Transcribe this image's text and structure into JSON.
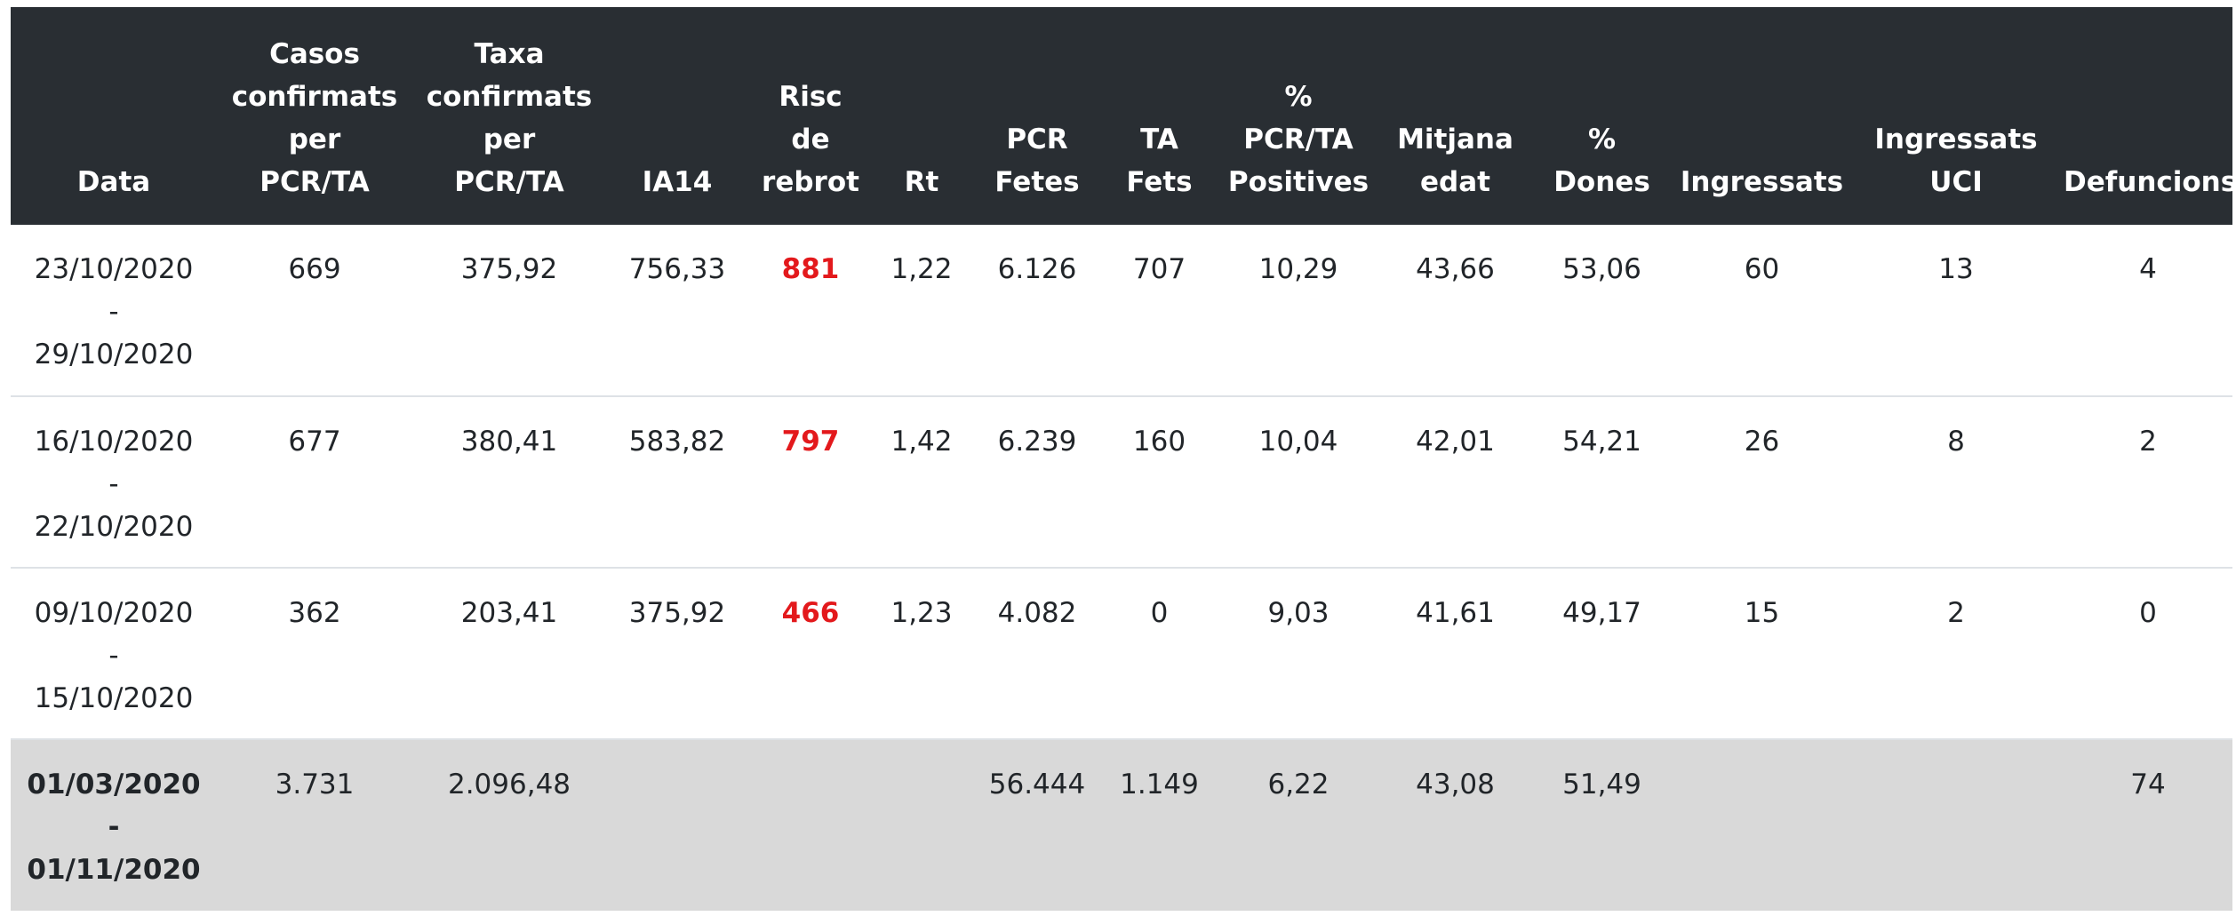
{
  "table": {
    "headers": [
      [
        "Data"
      ],
      [
        "Casos",
        "confirmats",
        "per",
        "PCR/TA"
      ],
      [
        "Taxa",
        "confirmats",
        "per",
        "PCR/TA"
      ],
      [
        "IA14"
      ],
      [
        "Risc",
        "de",
        "rebrot"
      ],
      [
        "Rt"
      ],
      [
        "PCR",
        "Fetes"
      ],
      [
        "TA",
        "Fets"
      ],
      [
        "%",
        "PCR/TA",
        "Positives"
      ],
      [
        "Mitjana",
        "edat"
      ],
      [
        "%",
        "Dones"
      ],
      [
        "Ingressats"
      ],
      [
        "Ingressats",
        "UCI"
      ],
      [
        "Defuncions"
      ]
    ],
    "rows": [
      {
        "date_start": "23/10/2020",
        "date_sep": "-",
        "date_end": "29/10/2020",
        "casos": "669",
        "taxa": "375,92",
        "ia14": "756,33",
        "risc": "881",
        "rt": "1,22",
        "pcr": "6.126",
        "ta": "707",
        "positives": "10,29",
        "edat": "43,66",
        "dones": "53,06",
        "ingressats": "60",
        "uci": "13",
        "defuncions": "4"
      },
      {
        "date_start": "16/10/2020",
        "date_sep": "-",
        "date_end": "22/10/2020",
        "casos": "677",
        "taxa": "380,41",
        "ia14": "583,82",
        "risc": "797",
        "rt": "1,42",
        "pcr": "6.239",
        "ta": "160",
        "positives": "10,04",
        "edat": "42,01",
        "dones": "54,21",
        "ingressats": "26",
        "uci": "8",
        "defuncions": "2"
      },
      {
        "date_start": "09/10/2020",
        "date_sep": "-",
        "date_end": "15/10/2020",
        "casos": "362",
        "taxa": "203,41",
        "ia14": "375,92",
        "risc": "466",
        "rt": "1,23",
        "pcr": "4.082",
        "ta": "0",
        "positives": "9,03",
        "edat": "41,61",
        "dones": "49,17",
        "ingressats": "15",
        "uci": "2",
        "defuncions": "0"
      }
    ],
    "total": {
      "date_start": "01/03/2020",
      "date_sep": "-",
      "date_end": "01/11/2020",
      "casos": "3.731",
      "taxa": "2.096,48",
      "ia14": "",
      "risc": "",
      "rt": "",
      "pcr": "56.444",
      "ta": "1.149",
      "positives": "6,22",
      "edat": "43,08",
      "dones": "51,49",
      "ingressats": "",
      "uci": "",
      "defuncions": "74"
    }
  },
  "colors": {
    "header_bg": "#292e33",
    "header_text": "#ffffff",
    "risk_text": "#e3191c",
    "total_row_bg": "#d9d9d9",
    "row_border": "#dee2e6"
  }
}
